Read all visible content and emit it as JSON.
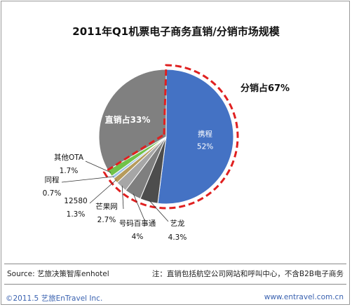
{
  "chart_data": {
    "type": "pie",
    "title": "2011年Q1机票电子商务直销/分销市场规模",
    "slices": [
      {
        "label": "携程",
        "value": 52,
        "value_text": "52%",
        "color": "#4472c4"
      },
      {
        "label": "艺龙",
        "value": 4.3,
        "value_text": "4.3%",
        "color": "#4d4d4d"
      },
      {
        "label": "号码百事通",
        "value": 4,
        "value_text": "4%",
        "color": "#7f7f7f"
      },
      {
        "label": "芒果网",
        "value": 2.7,
        "value_text": "2.7%",
        "color": "#a6a6a6"
      },
      {
        "label": "12580",
        "value": 1.3,
        "value_text": "1.3%",
        "color": "#b69b5c"
      },
      {
        "label": "同程",
        "value": 0.7,
        "value_text": "0.7%",
        "color": "#9dc3e6"
      },
      {
        "label": "其他OTA",
        "value": 1.7,
        "value_text": "1.7%",
        "color": "#70c24a"
      },
      {
        "label": "直销",
        "value": 33.3,
        "value_text": "",
        "color": "#808080"
      }
    ],
    "group_labels": {
      "direct": "直销占33%",
      "distribution": "分销占67%"
    },
    "highlight_color": "#e02020"
  },
  "footer": {
    "source": "Source:  艺旅决策智库enhotel",
    "note": "注：直销包括航空公司网站和呼叫中心，不含B2B电子商务",
    "copyright": "©2011.5  艺旅EnTravel  Inc.",
    "website": "www.entravel.com.cn"
  }
}
